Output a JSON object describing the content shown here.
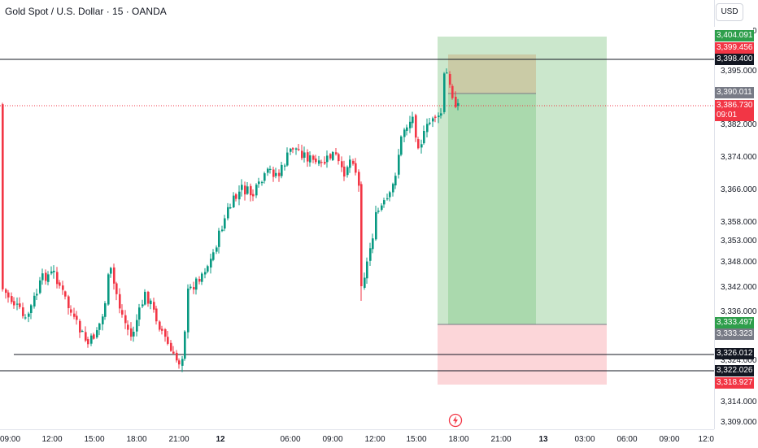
{
  "title": "Gold Spot / U.S. Dollar · 15 · OANDA",
  "currency": "USD",
  "price_ticks": [
    "3,405.000",
    "3,395.000",
    "3,382.000",
    "3,374.000",
    "3,366.000",
    "3,358.000",
    "3,353.000",
    "3,348.000",
    "3,342.000",
    "3,336.000",
    "3,324.000",
    "3,314.000",
    "3,309.000"
  ],
  "price_tags": [
    {
      "value": "3,404.091",
      "color": "#2e9e4b"
    },
    {
      "value": "3,399.456",
      "color": "#f23645"
    },
    {
      "value": "3,398.400",
      "color": "#131722"
    },
    {
      "value": "3,390.011",
      "color": "#787b86"
    },
    {
      "value": "3,386.730",
      "sub": "09:01",
      "color": "#f23645"
    },
    {
      "value": "3,333.497",
      "color": "#2e9e4b"
    },
    {
      "value": "3,333.323",
      "color": "#787b86"
    },
    {
      "value": "3,326.012",
      "color": "#131722"
    },
    {
      "value": "3,322.026",
      "color": "#131722"
    },
    {
      "value": "3,318.927",
      "color": "#f23645"
    }
  ],
  "time_labels": [
    {
      "text": "09:00"
    },
    {
      "text": "12:00"
    },
    {
      "text": "15:00"
    },
    {
      "text": "18:00"
    },
    {
      "text": "21:00"
    },
    {
      "text": "12",
      "bold": true
    },
    {
      "text": "06:00"
    },
    {
      "text": "09:00"
    },
    {
      "text": "12:00"
    },
    {
      "text": "15:00"
    },
    {
      "text": "18:00"
    },
    {
      "text": "21:00"
    },
    {
      "text": "13",
      "bold": true
    },
    {
      "text": "03:00"
    },
    {
      "text": "06:00"
    },
    {
      "text": "09:00"
    },
    {
      "text": "12:0"
    }
  ],
  "colors": {
    "up": "#089981",
    "down": "#f23645",
    "profit_zone": "#c8e6c9",
    "loss_zone": "#fcd6d9"
  },
  "icons": {
    "alert": "lightning-alert-icon"
  }
}
